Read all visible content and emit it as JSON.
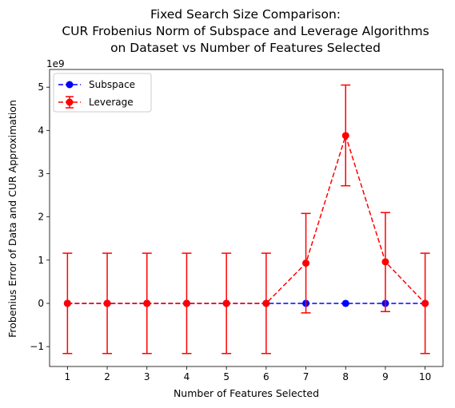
{
  "chart_data": {
    "type": "line",
    "title_lines": [
      "Fixed Search Size Comparison:",
      "CUR Frobenius Norm of Subspace and Leverage Algorithms",
      "on Dataset vs Number of Features Selected"
    ],
    "xlabel": "Number of Features Selected",
    "ylabel": "Frobenius Error of Data and CUR Approximation",
    "y_scale_label": "1e9",
    "x": [
      1,
      2,
      3,
      4,
      5,
      6,
      7,
      8,
      9,
      10
    ],
    "xticks": [
      "1",
      "2",
      "3",
      "4",
      "5",
      "6",
      "7",
      "8",
      "9",
      "10"
    ],
    "yticks": [
      -1,
      0,
      1,
      2,
      3,
      4,
      5
    ],
    "ytick_labels": [
      "−1",
      "0",
      "1",
      "2",
      "3",
      "4",
      "5"
    ],
    "xlim": [
      0.55,
      10.45
    ],
    "ylim": [
      -1.46,
      5.41
    ],
    "grid": false,
    "legend_position": "top-left",
    "series": [
      {
        "name": "Subspace",
        "color": "#0000ff",
        "values": [
          0,
          0,
          0,
          0,
          0,
          0,
          0,
          0,
          0,
          0
        ],
        "error": null
      },
      {
        "name": "Leverage",
        "color": "#ff0000",
        "values": [
          0,
          0,
          0,
          0,
          0,
          0,
          0.93,
          3.88,
          0.96,
          0
        ],
        "error_low": [
          -1.16,
          -1.16,
          -1.16,
          -1.16,
          -1.16,
          -1.16,
          -0.22,
          2.72,
          -0.19,
          -1.16
        ],
        "error_high": [
          1.16,
          1.16,
          1.16,
          1.16,
          1.16,
          1.16,
          2.08,
          5.05,
          2.1,
          1.16
        ]
      }
    ]
  }
}
